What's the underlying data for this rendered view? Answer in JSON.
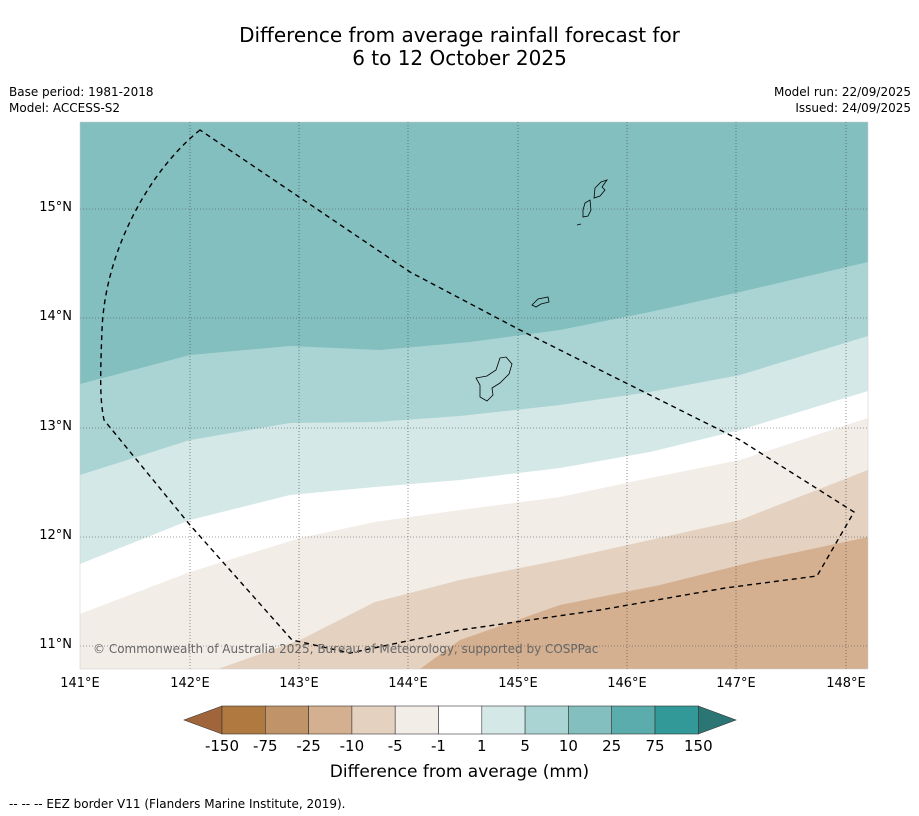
{
  "title": {
    "line1": "Difference from average rainfall forecast for",
    "line2": "6 to 12 October 2025"
  },
  "meta": {
    "base_period": "Base period: 1981-2018",
    "model": "Model: ACCESS-S2",
    "model_run": "Model run: 22/09/2025",
    "issued": "Issued: 24/09/2025"
  },
  "map": {
    "copyright": "© Commonwealth of Australia 2025, Bureau of Meteorology, supported by COSPPac",
    "lon_labels": [
      "141°E",
      "142°E",
      "143°E",
      "144°E",
      "145°E",
      "146°E",
      "147°E",
      "148°E"
    ],
    "lat_labels": [
      "15°N",
      "14°N",
      "13°N",
      "12°N",
      "11°N"
    ]
  },
  "colorbar": {
    "title": "Difference from average (mm)",
    "labels": [
      "-150",
      "-75",
      "-25",
      "-10",
      "-5",
      "-1",
      "1",
      "5",
      "10",
      "25",
      "75",
      "150"
    ],
    "colors": {
      "under": "#a0653a",
      "bins": [
        "#b07940",
        "#c09468",
        "#d4b091",
        "#e4d1c0",
        "#f3ede8",
        "#ffffff",
        "#d4e8e7",
        "#aad4d3",
        "#84bfbf",
        "#5aadac",
        "#339898"
      ],
      "over": "#2b7574"
    }
  },
  "footer": "-- -- -- EEZ border V11 (Flanders Marine Institute, 2019)."
}
